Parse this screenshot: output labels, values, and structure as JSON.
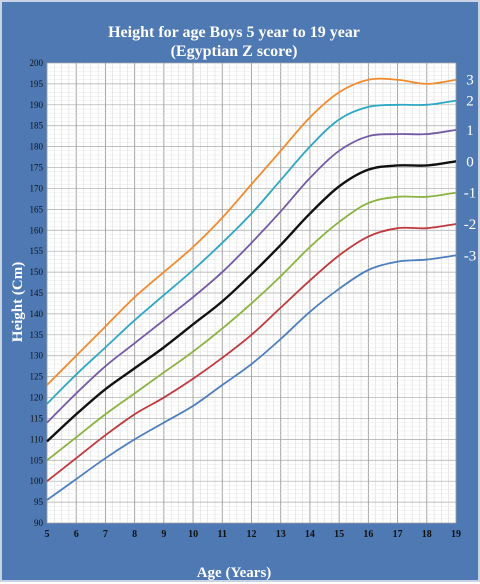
{
  "chart_data": {
    "type": "line",
    "title": "Height for age Boys 5 year to 19 year",
    "subtitle": "(Egyptian Z score)",
    "xlabel": "Age (Years)",
    "ylabel": "Height (Cm)",
    "xlim": [
      5,
      19
    ],
    "ylim": [
      90,
      200
    ],
    "x_ticks": [
      "5",
      "6",
      "7",
      "8",
      "9",
      "10",
      "11",
      "12",
      "13",
      "14",
      "15",
      "16",
      "17",
      "18",
      "19"
    ],
    "y_ticks": [
      "90",
      "95",
      "100",
      "105",
      "110",
      "115",
      "120",
      "125",
      "130",
      "135",
      "140",
      "145",
      "150",
      "155",
      "160",
      "165",
      "170",
      "175",
      "180",
      "185",
      "190",
      "195",
      "200"
    ],
    "grid": true,
    "x": [
      5,
      6,
      7,
      8,
      9,
      10,
      11,
      12,
      13,
      14,
      15,
      16,
      17,
      18,
      19
    ],
    "series": [
      {
        "name": "3",
        "color": "#f28a2e",
        "values": [
          123,
          130,
          137,
          144,
          150,
          156,
          163,
          171,
          179,
          187,
          193,
          196,
          196,
          195,
          196
        ]
      },
      {
        "name": "2",
        "color": "#2ea7c4",
        "values": [
          118.5,
          125.5,
          132,
          138.5,
          144.5,
          150.5,
          157,
          164,
          172,
          180,
          186.5,
          189.5,
          190,
          190,
          191
        ]
      },
      {
        "name": "1",
        "color": "#7459a6",
        "values": [
          114,
          121,
          127.5,
          133,
          138.5,
          144,
          150,
          157,
          164.5,
          172.5,
          179,
          182.5,
          183,
          183,
          184
        ]
      },
      {
        "name": "0",
        "color": "#111111",
        "values": [
          109.5,
          116,
          122,
          127,
          132,
          137.5,
          143,
          149.5,
          156.5,
          164,
          170.5,
          174.5,
          175.5,
          175.5,
          176.5
        ]
      },
      {
        "name": "-1",
        "color": "#8ab340",
        "values": [
          105,
          110.5,
          116,
          121,
          126,
          131,
          136.5,
          142.5,
          149,
          156,
          162,
          166.5,
          168,
          168,
          169
        ]
      },
      {
        "name": "-2",
        "color": "#c0393d",
        "values": [
          100,
          105.5,
          111,
          116,
          120,
          124.5,
          129.5,
          135,
          141.5,
          148,
          154,
          158.5,
          160.5,
          160.5,
          161.5
        ]
      },
      {
        "name": "-3",
        "color": "#4d7fbf",
        "values": [
          95.5,
          100.5,
          105.5,
          110,
          114,
          118,
          123,
          128,
          134,
          140.5,
          146,
          150.5,
          152.5,
          153,
          154
        ]
      }
    ],
    "line_labels": [
      "3",
      "2",
      "1",
      "0",
      "-1",
      "-2",
      "-3"
    ]
  }
}
